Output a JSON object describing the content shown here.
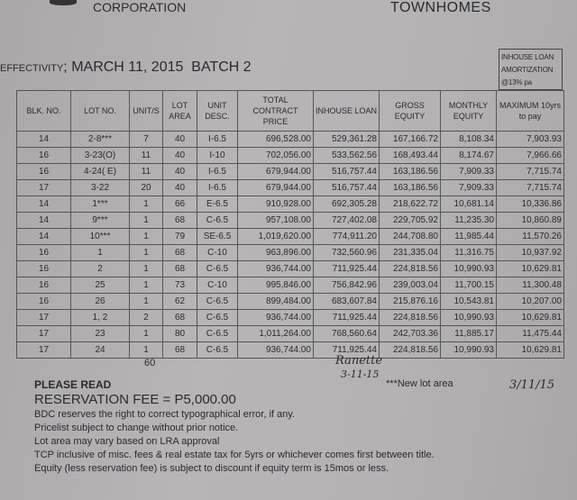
{
  "header": {
    "company": "CORPORATION",
    "project": "TOWNHOMES"
  },
  "effectivity": {
    "label": "EFFECTIVITY",
    "sep": ";",
    "date": "MARCH 11, 2015",
    "batch": "BATCH 2"
  },
  "loan_box": {
    "line1": "INHOUSE LOAN",
    "line2": "AMORTIZATION",
    "line3": "@13% pa"
  },
  "table": {
    "headers": [
      "BLK. NO.",
      "LOT NO.",
      "UNIT/S",
      "LOT AREA",
      "UNIT DESC.",
      "TOTAL CONTRACT PRICE",
      "INHOUSE LOAN",
      "GROSS EQUITY",
      "MONTHLY EQUITY",
      "MAXIMUM 10yrs to pay"
    ],
    "rows": [
      [
        "14",
        "2-8***",
        "7",
        "40",
        "I-6.5",
        "696,528.00",
        "529,361.28",
        "167,166.72",
        "8,108.34",
        "7,903.93"
      ],
      [
        "16",
        "3-23(O)",
        "11",
        "40",
        "I-10",
        "702,056.00",
        "533,562.56",
        "168,493.44",
        "8,174.67",
        "7,966.66"
      ],
      [
        "16",
        "4-24( E)",
        "11",
        "40",
        "I-6.5",
        "679,944.00",
        "516,757.44",
        "163,186.56",
        "7,909.33",
        "7,715.74"
      ],
      [
        "17",
        "3-22",
        "20",
        "40",
        "I-6.5",
        "679,944.00",
        "516,757.44",
        "163,186.56",
        "7,909.33",
        "7,715.74"
      ],
      [
        "14",
        "1***",
        "1",
        "66",
        "E-6.5",
        "910,928.00",
        "692,305.28",
        "218,622.72",
        "10,681.14",
        "10,336.86"
      ],
      [
        "14",
        "9***",
        "1",
        "68",
        "C-6.5",
        "957,108.00",
        "727,402.08",
        "229,705.92",
        "11,235.30",
        "10,860.89"
      ],
      [
        "14",
        "10***",
        "1",
        "79",
        "SE-6.5",
        "1,019,620.00",
        "774,911.20",
        "244,708.80",
        "11,985.44",
        "11,570.26"
      ],
      [
        "16",
        "1",
        "1",
        "68",
        "C-10",
        "963,896.00",
        "732,560.96",
        "231,335.04",
        "11,316.75",
        "10,937.92"
      ],
      [
        "16",
        "2",
        "1",
        "68",
        "C-6.5",
        "936,744.00",
        "711,925.44",
        "224,818.56",
        "10,990.93",
        "10,629.81"
      ],
      [
        "16",
        "25",
        "1",
        "73",
        "C-10",
        "995,846.00",
        "756,842.96",
        "239,003.04",
        "11,700.15",
        "11,300.48"
      ],
      [
        "16",
        "26",
        "1",
        "62",
        "C-6.5",
        "899,484.00",
        "683,607.84",
        "215,876.16",
        "10,543.81",
        "10,207.00"
      ],
      [
        "17",
        "1, 2",
        "2",
        "68",
        "C-6.5",
        "936,744.00",
        "711,925.44",
        "224,818.56",
        "10,990.93",
        "10,629.81"
      ],
      [
        "17",
        "23",
        "1",
        "80",
        "C-6.5",
        "1,011,264.00",
        "768,560.64",
        "242,703.36",
        "11,885.17",
        "11,475.44"
      ],
      [
        "17",
        "24",
        "1",
        "68",
        "C-6.5",
        "936,744.00",
        "711,925.44",
        "224,818.56",
        "10,990.93",
        "10,629.81"
      ]
    ],
    "total_units": "60"
  },
  "handwriting": {
    "signature1": "Ranette",
    "date1": "3-11-15",
    "signature2_date": "3/11/15"
  },
  "footnote": "***New lot area",
  "notes": {
    "heading": "PLEASE READ",
    "fee": "RESERVATION FEE = P5,000.00",
    "lines": [
      "BDC reserves the right to correct typographical error, if any.",
      "Pricelist subject to change without prior notice.",
      "Lot area may vary based on LRA approval",
      "TCP inclusive of misc. fees & real estate tax for  5yrs or whichever comes first between title.",
      "Equity (less reservation fee) is subject to discount if equity term is 15mos or less."
    ]
  }
}
